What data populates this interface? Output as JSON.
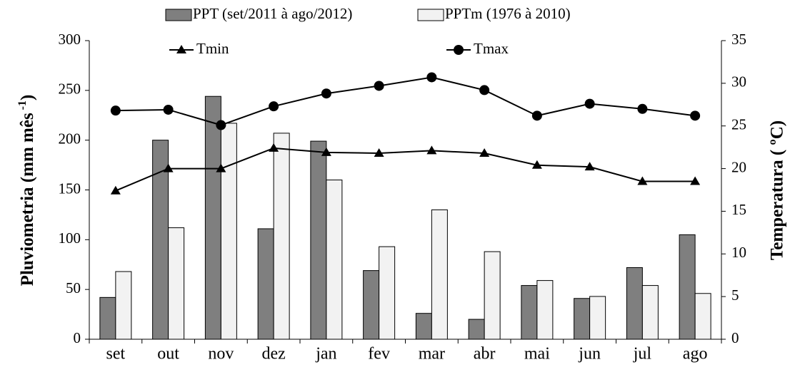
{
  "chart_data": {
    "type": "bar_line",
    "categories": [
      "set",
      "out",
      "nov",
      "dez",
      "jan",
      "fev",
      "mar",
      "abr",
      "mai",
      "jun",
      "jul",
      "ago"
    ],
    "series": [
      {
        "name": "PPT (set/2011 à ago/2012)",
        "color": "#7f7f7f",
        "type": "bar",
        "axis": "y",
        "values": [
          42,
          200,
          244,
          111,
          199,
          69,
          26,
          20,
          54,
          41,
          72,
          105
        ]
      },
      {
        "name": "PPTm (1976 à 2010)",
        "color": "#f2f2f2",
        "type": "bar",
        "axis": "y",
        "values": [
          68,
          112,
          217,
          207,
          160,
          93,
          130,
          88,
          59,
          43,
          54,
          46
        ]
      },
      {
        "name": "Tmin",
        "color": "#000000",
        "type": "line",
        "marker": "triangle",
        "axis": "y2",
        "values": [
          17.4,
          20.0,
          20.0,
          22.4,
          21.9,
          21.8,
          22.1,
          21.8,
          20.4,
          20.2,
          18.5,
          18.5
        ]
      },
      {
        "name": "Tmax",
        "color": "#000000",
        "type": "line",
        "marker": "circle",
        "axis": "y2",
        "values": [
          26.8,
          26.9,
          25.1,
          27.3,
          28.8,
          29.7,
          30.7,
          29.2,
          26.2,
          27.6,
          27.0,
          26.2
        ]
      }
    ],
    "ylabel": "Pluviometria (mm mês",
    "ylabel_sup": "-1",
    "ylabel_end": ")",
    "y2label": "Temperatura ( ºC)",
    "ylim": [
      0,
      300
    ],
    "yticks": [
      0,
      50,
      100,
      150,
      200,
      250,
      300
    ],
    "y2lim": [
      0,
      35
    ],
    "y2ticks": [
      0,
      5,
      10,
      15,
      20,
      25,
      30,
      35
    ],
    "grid": false,
    "legend": "top"
  }
}
